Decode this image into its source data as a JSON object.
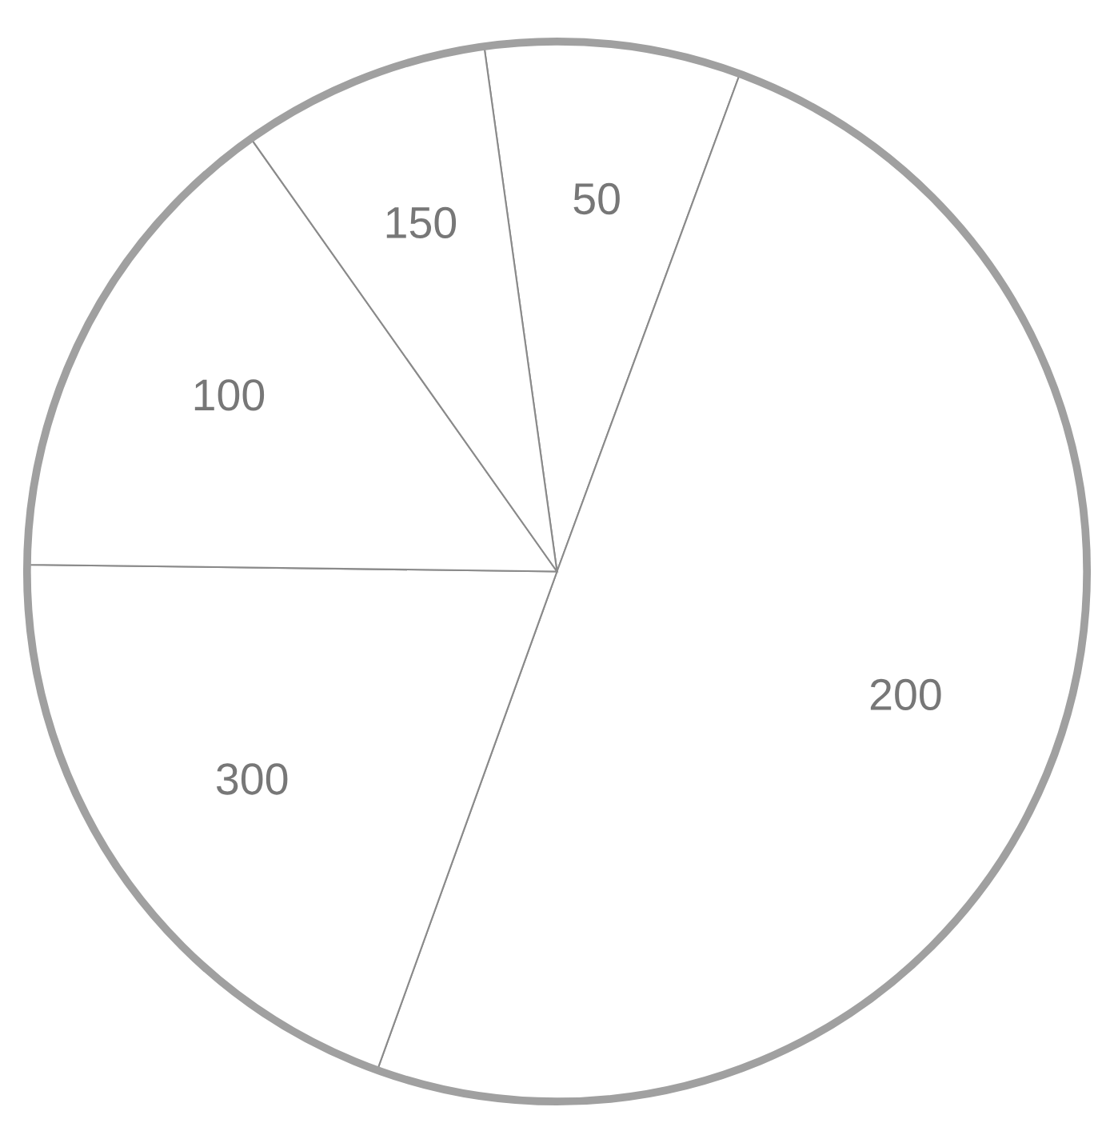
{
  "chart_data": {
    "type": "pie",
    "categories": [
      "50",
      "200",
      "300",
      "100",
      "150"
    ],
    "values": [
      7.8,
      49.9,
      19.7,
      15.0,
      7.6
    ],
    "colors": [
      "#ffffff",
      "#ffffff",
      "#ffffff",
      "#ffffff",
      "#ffffff"
    ]
  }
}
